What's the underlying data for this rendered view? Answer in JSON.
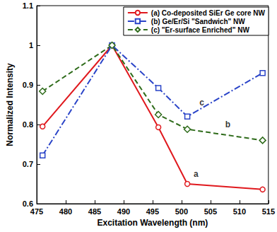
{
  "chart_data": {
    "type": "line",
    "x_label": "Excitation Wavelength (nm)",
    "y_label": "Normalized Intensity",
    "x": [
      476,
      488,
      496,
      501,
      514
    ],
    "series": [
      {
        "name": "(a) Co-deposited SiEr Ge core NW",
        "color": "#e0191e",
        "marker": "circle",
        "line_style": "solid",
        "values": [
          0.795,
          1.0,
          0.793,
          0.65,
          0.636
        ]
      },
      {
        "name": "(b) Ge/Er/Si \"Sandwich\" NW",
        "color": "#2a44c8",
        "marker": "square",
        "line_style": "dashdot",
        "values": [
          0.722,
          1.0,
          0.892,
          0.82,
          0.93
        ]
      },
      {
        "name": "(c) \"Er-surface Enriched\" NW",
        "color": "#2e6b1a",
        "marker": "diamond",
        "line_style": "dashed",
        "values": [
          0.884,
          1.0,
          0.825,
          0.788,
          0.76
        ]
      }
    ],
    "annotations": [
      {
        "text": "a",
        "x": 502.5,
        "y": 0.675
      },
      {
        "text": "c",
        "x": 503.5,
        "y": 0.855
      },
      {
        "text": "b",
        "x": 508,
        "y": 0.8
      }
    ],
    "xlim": [
      475,
      515
    ],
    "xticks": [
      475,
      480,
      485,
      490,
      495,
      500,
      505,
      510,
      515
    ],
    "ylim": [
      0.6,
      1.1
    ],
    "yticks": [
      0.6,
      0.7,
      0.8,
      0.9,
      1,
      1.1
    ],
    "grid": false,
    "legend": "upper right"
  }
}
